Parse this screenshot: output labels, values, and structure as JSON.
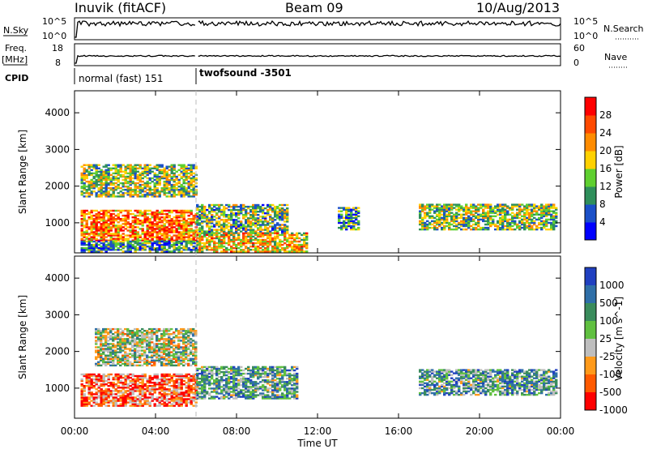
{
  "header": {
    "station": "Inuvik (fitACF)",
    "beam": "Beam 09",
    "date": "10/Aug/2013"
  },
  "top_panels": {
    "nsky_label": "N.Sky",
    "nsky_ticks": [
      "10^5",
      "10^0"
    ],
    "nsearch_label": "N.Search",
    "nsearch_ticks": [
      "10^5",
      "10^0"
    ],
    "freq_label": "Freq.",
    "freq_unit": "[MHz]",
    "freq_ticks": [
      "18",
      "8"
    ],
    "nave_label": "Nave",
    "nave_ticks": [
      "60",
      "0"
    ],
    "cpid_label": "CPID",
    "cpid_segments": [
      {
        "label": "normal (fast) 151",
        "start_h": 0.0,
        "end_h": 6.0
      },
      {
        "label": "twofsound -3501",
        "start_h": 6.0,
        "end_h": 24.0
      }
    ]
  },
  "chart_data": [
    {
      "type": "heatmap",
      "name": "power",
      "ylabel": "Slant Range [km]",
      "yticks": [
        1000,
        2000,
        3000,
        4000
      ],
      "ylim": [
        180,
        4600
      ],
      "colorbar": {
        "label": "Power [dB]",
        "ticks": [
          4,
          8,
          12,
          16,
          20,
          24,
          28
        ],
        "colors": [
          "#0000ff",
          "#1b50c8",
          "#2f8f5b",
          "#5fd030",
          "#ffd100",
          "#ff8c00",
          "#ff4a00",
          "#ff0000"
        ]
      },
      "regions": [
        {
          "t0": 0.3,
          "t1": 6.0,
          "r0": 1700,
          "r1": 2600,
          "level": 0.45
        },
        {
          "t0": 0.3,
          "t1": 6.0,
          "r0": 500,
          "r1": 1350,
          "level": 0.75
        },
        {
          "t0": 0.3,
          "t1": 6.0,
          "r0": 200,
          "r1": 500,
          "level": 0.3
        },
        {
          "t0": 6.0,
          "t1": 10.5,
          "r0": 700,
          "r1": 1500,
          "level": 0.4
        },
        {
          "t0": 6.0,
          "t1": 11.5,
          "r0": 200,
          "r1": 700,
          "level": 0.6
        },
        {
          "t0": 13.0,
          "t1": 14.0,
          "r0": 800,
          "r1": 1400,
          "level": 0.3
        },
        {
          "t0": 17.0,
          "t1": 23.8,
          "r0": 800,
          "r1": 1500,
          "level": 0.45
        }
      ]
    },
    {
      "type": "heatmap",
      "name": "velocity",
      "ylabel": "Slant Range [km]",
      "yticks": [
        1000,
        2000,
        3000,
        4000
      ],
      "ylim": [
        180,
        4600
      ],
      "colorbar": {
        "label": "Velocity [m s^-1]",
        "ticks": [
          "1000",
          "500",
          "100",
          "25",
          "-25",
          "-100",
          "-500",
          "-1000"
        ],
        "colors": [
          "#2040c0",
          "#2f6fa8",
          "#3a8c5c",
          "#60c040",
          "#bebebe",
          "#ff9a1a",
          "#ff5a00",
          "#ff0000"
        ]
      },
      "regions": [
        {
          "t0": 1.0,
          "t1": 6.0,
          "r0": 1600,
          "r1": 2600,
          "level": 0.5
        },
        {
          "t0": 0.3,
          "t1": 6.0,
          "r0": 500,
          "r1": 1400,
          "level": 0.8
        },
        {
          "t0": 6.0,
          "t1": 11.0,
          "r0": 700,
          "r1": 1600,
          "level": 0.35
        },
        {
          "t0": 17.0,
          "t1": 23.8,
          "r0": 800,
          "r1": 1500,
          "level": 0.35
        }
      ]
    }
  ],
  "xaxis": {
    "label": "Time UT",
    "ticks": [
      "00:00",
      "04:00",
      "08:00",
      "12:00",
      "16:00",
      "20:00",
      "00:00"
    ],
    "tick_hours": [
      0,
      4,
      8,
      12,
      16,
      20,
      24
    ]
  }
}
